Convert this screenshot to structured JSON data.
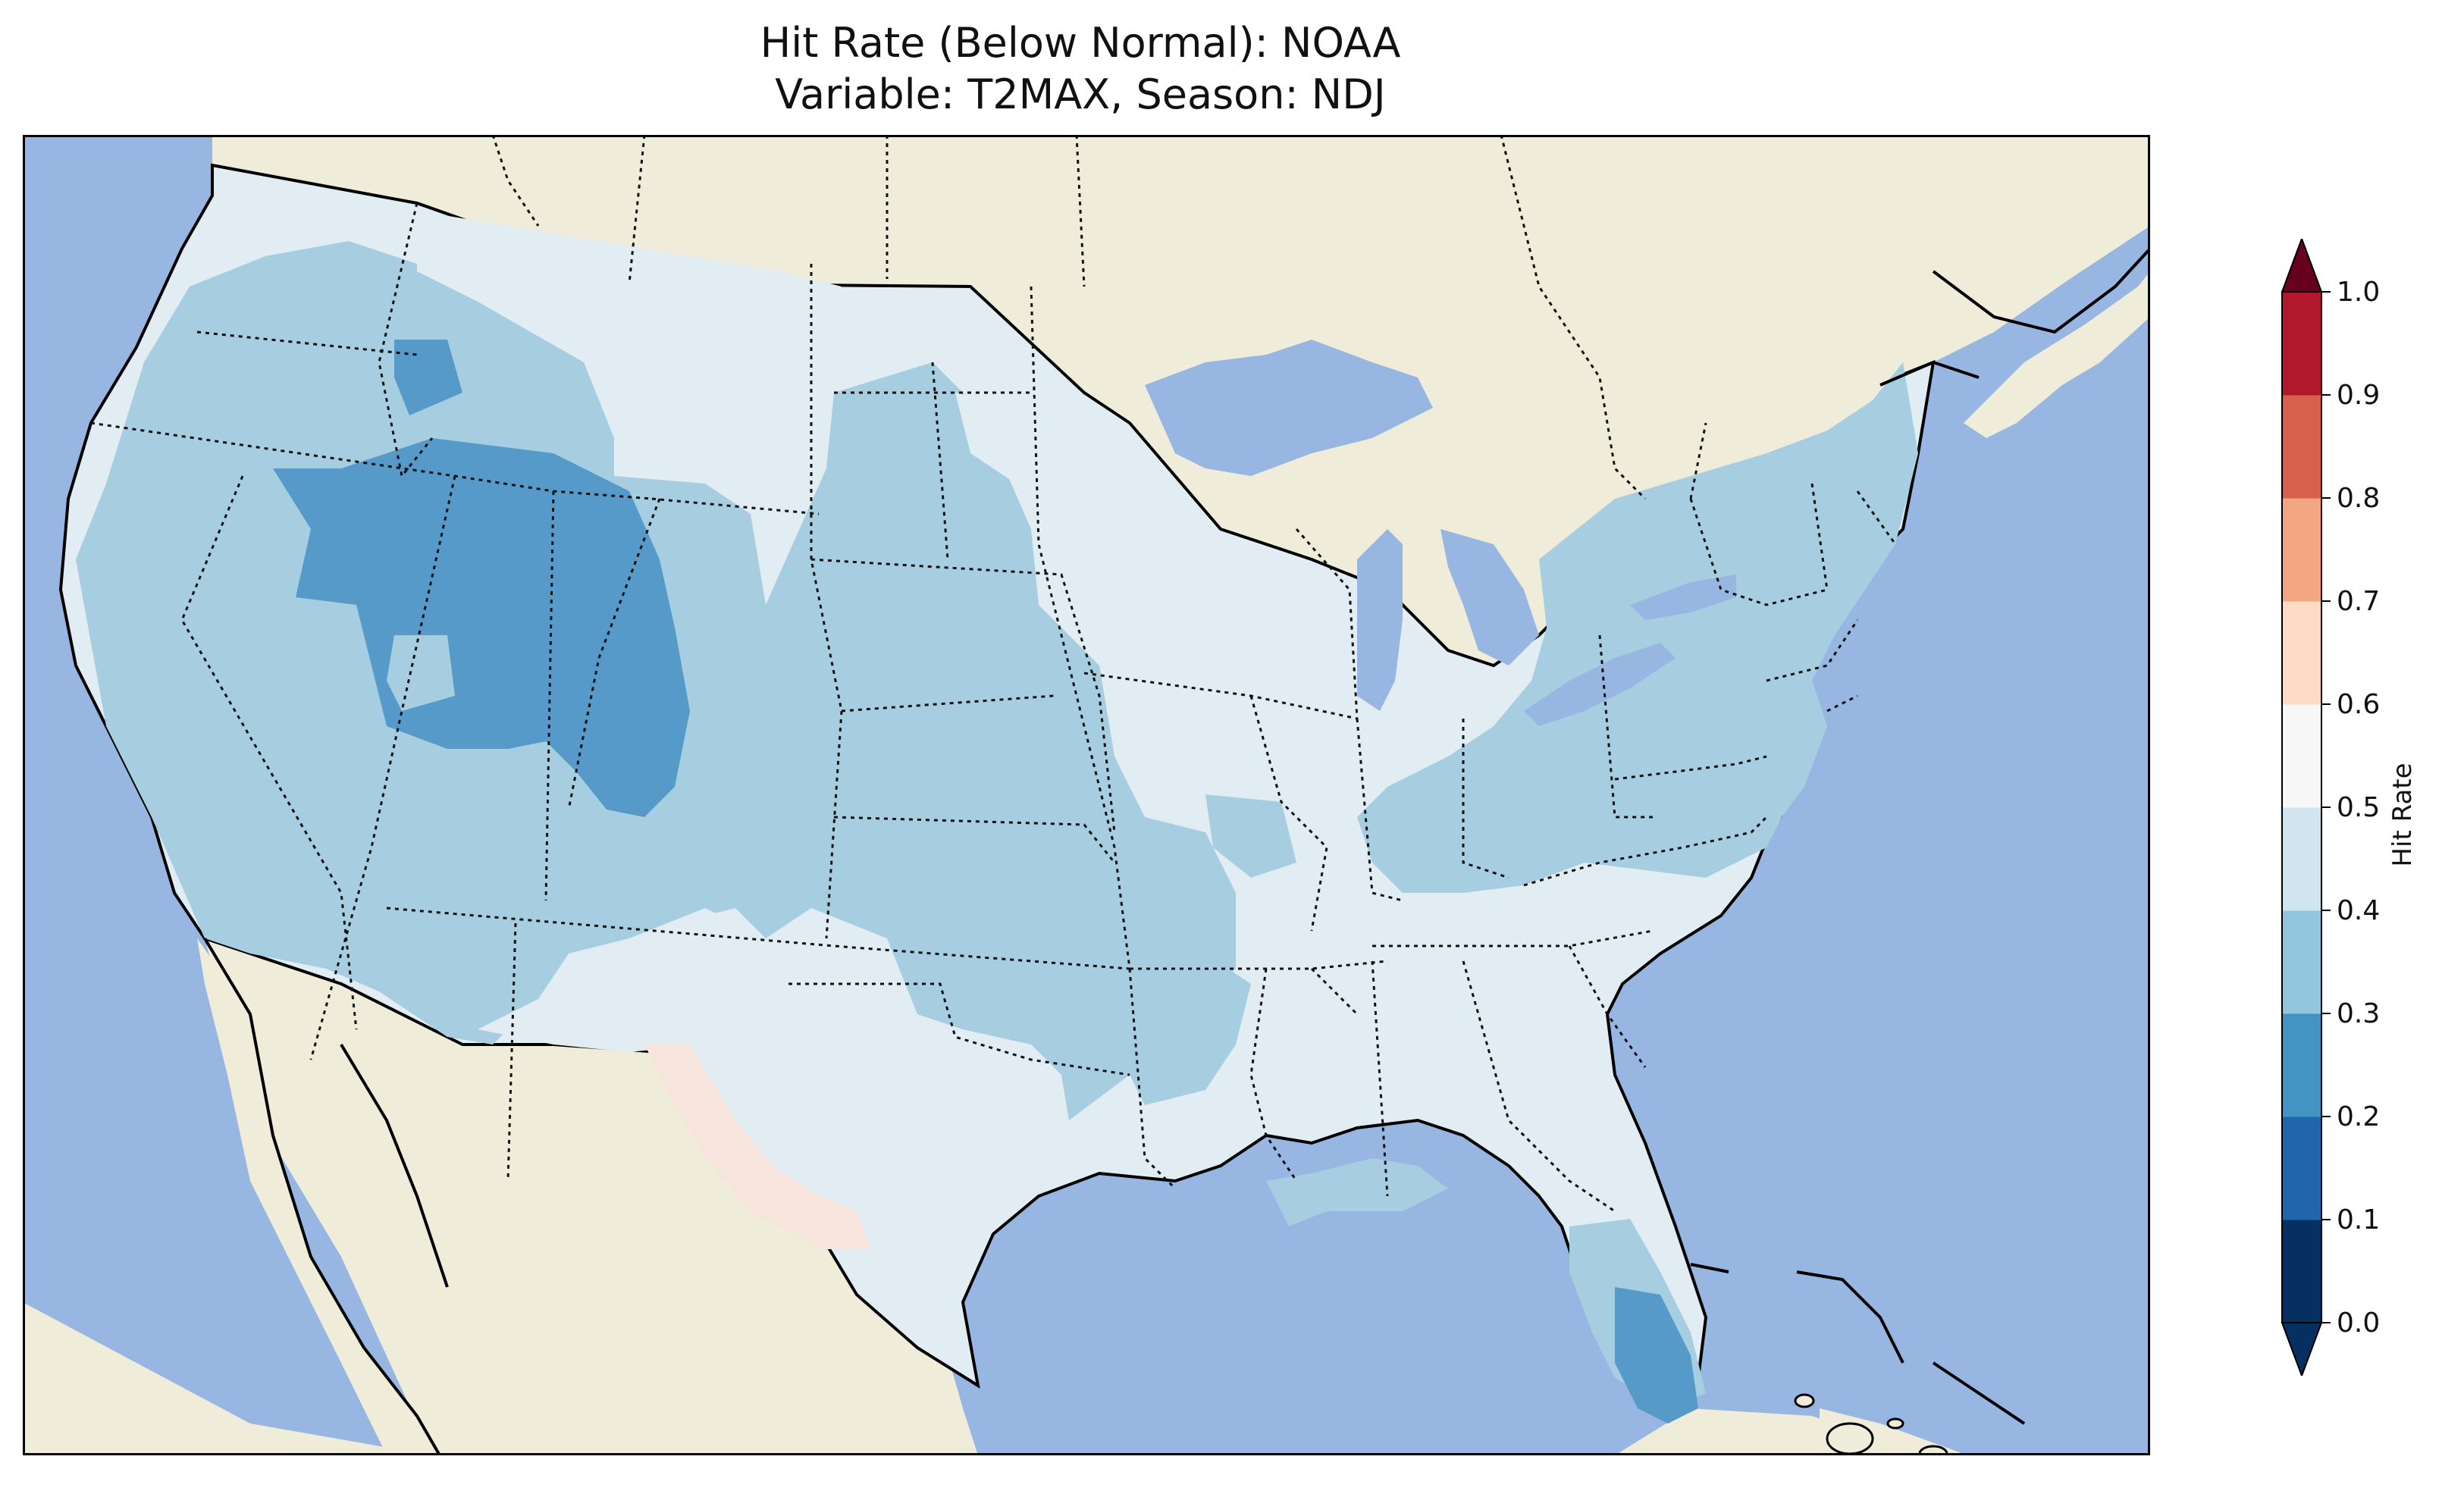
{
  "title": {
    "line1": "Hit Rate (Below Normal): NOAA",
    "line2": "Variable: T2MAX, Season: NDJ"
  },
  "colorbar": {
    "label": "Hit Rate",
    "ticks": [
      "0.0",
      "0.1",
      "0.2",
      "0.3",
      "0.4",
      "0.5",
      "0.6",
      "0.7",
      "0.8",
      "0.9",
      "1.0"
    ],
    "colors": [
      "#053061",
      "#2166ac",
      "#4393c3",
      "#92c5de",
      "#d1e5f0",
      "#f7f7f7",
      "#fddbc7",
      "#f4a582",
      "#d6604d",
      "#b2182b",
      "#67001f"
    ],
    "extend": "both"
  },
  "map": {
    "ocean_color": "#97b6e1",
    "land_color": "#efedda",
    "class_colors": {
      "0.4-0.5": "#e1ecf3",
      "0.3-0.4": "#a7cde1",
      "0.2-0.3": "#559ac8",
      "0.5-0.6": "#f7e4dc"
    }
  }
}
